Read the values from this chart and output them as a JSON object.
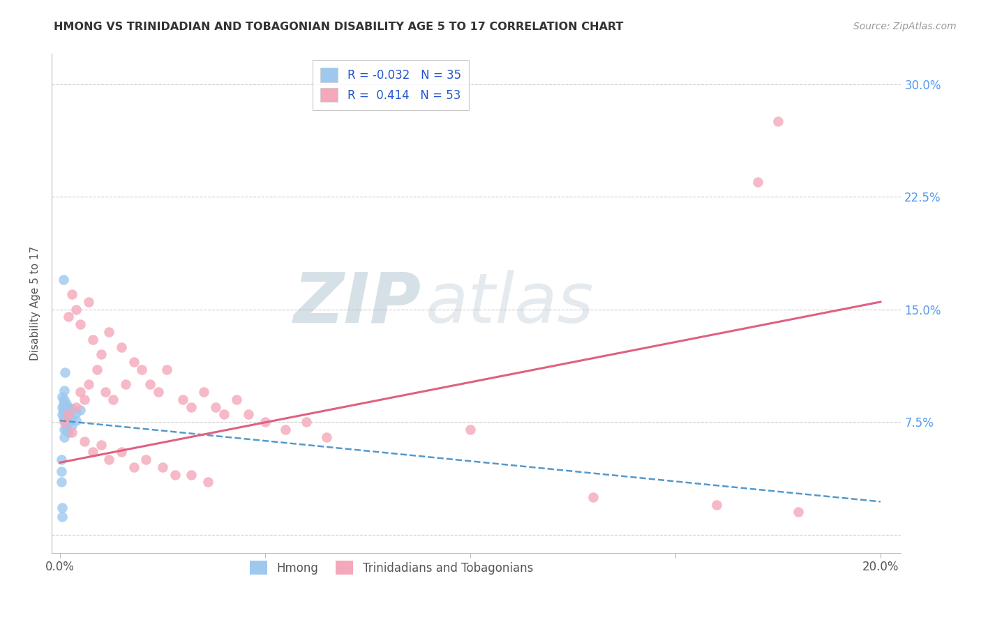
{
  "title": "HMONG VS TRINIDADIAN AND TOBAGONIAN DISABILITY AGE 5 TO 17 CORRELATION CHART",
  "source": "Source: ZipAtlas.com",
  "ylabel": "Disability Age 5 to 17",
  "watermark_zip": "ZIP",
  "watermark_atlas": "atlas",
  "x_min": -0.002,
  "x_max": 0.205,
  "y_min": -0.012,
  "y_max": 0.32,
  "x_tick_positions": [
    0.0,
    0.05,
    0.1,
    0.15,
    0.2
  ],
  "x_tick_labels": [
    "0.0%",
    "",
    "",
    "",
    "20.0%"
  ],
  "y_tick_positions": [
    0.0,
    0.075,
    0.15,
    0.225,
    0.3
  ],
  "y_tick_labels_right": [
    "",
    "7.5%",
    "15.0%",
    "22.5%",
    "30.0%"
  ],
  "hmong_R": -0.032,
  "hmong_N": 35,
  "trint_R": 0.414,
  "trint_N": 53,
  "legend_label_1": "Hmong",
  "legend_label_2": "Trinidadians and Tobagonians",
  "hmong_color": "#9EC8EE",
  "trint_color": "#F4A8BA",
  "hmong_line_color": "#5599CC",
  "trint_line_color": "#E06080",
  "grid_color": "#CCCCCC",
  "background_color": "#FFFFFF",
  "hmong_line_start_y": 0.076,
  "hmong_line_end_y": 0.022,
  "trint_line_start_y": 0.048,
  "trint_line_end_y": 0.155,
  "hmong_x": [
    0.0005,
    0.0005,
    0.0005,
    0.0008,
    0.0008,
    0.0008,
    0.001,
    0.001,
    0.001,
    0.001,
    0.001,
    0.001,
    0.001,
    0.0015,
    0.0015,
    0.0015,
    0.0015,
    0.002,
    0.002,
    0.002,
    0.002,
    0.0025,
    0.003,
    0.003,
    0.003,
    0.004,
    0.004,
    0.005,
    0.0005,
    0.0005,
    0.0003,
    0.0003,
    0.0003,
    0.0008,
    0.0012
  ],
  "hmong_y": [
    0.092,
    0.085,
    0.08,
    0.088,
    0.083,
    0.078,
    0.096,
    0.09,
    0.086,
    0.082,
    0.076,
    0.07,
    0.065,
    0.087,
    0.082,
    0.076,
    0.07,
    0.085,
    0.079,
    0.074,
    0.068,
    0.082,
    0.084,
    0.078,
    0.073,
    0.081,
    0.076,
    0.083,
    0.012,
    0.018,
    0.05,
    0.042,
    0.035,
    0.17,
    0.108
  ],
  "trint_x": [
    0.001,
    0.002,
    0.002,
    0.003,
    0.004,
    0.004,
    0.005,
    0.005,
    0.006,
    0.007,
    0.007,
    0.008,
    0.009,
    0.01,
    0.011,
    0.012,
    0.013,
    0.015,
    0.016,
    0.018,
    0.02,
    0.022,
    0.024,
    0.026,
    0.03,
    0.032,
    0.035,
    0.038,
    0.04,
    0.043,
    0.046,
    0.05,
    0.055,
    0.06,
    0.065,
    0.003,
    0.006,
    0.008,
    0.01,
    0.012,
    0.015,
    0.018,
    0.021,
    0.025,
    0.028,
    0.032,
    0.036,
    0.1,
    0.13,
    0.16,
    0.18,
    0.175,
    0.17
  ],
  "trint_y": [
    0.075,
    0.145,
    0.08,
    0.16,
    0.15,
    0.085,
    0.14,
    0.095,
    0.09,
    0.155,
    0.1,
    0.13,
    0.11,
    0.12,
    0.095,
    0.135,
    0.09,
    0.125,
    0.1,
    0.115,
    0.11,
    0.1,
    0.095,
    0.11,
    0.09,
    0.085,
    0.095,
    0.085,
    0.08,
    0.09,
    0.08,
    0.075,
    0.07,
    0.075,
    0.065,
    0.068,
    0.062,
    0.055,
    0.06,
    0.05,
    0.055,
    0.045,
    0.05,
    0.045,
    0.04,
    0.04,
    0.035,
    0.07,
    0.025,
    0.02,
    0.015,
    0.275,
    0.235
  ]
}
